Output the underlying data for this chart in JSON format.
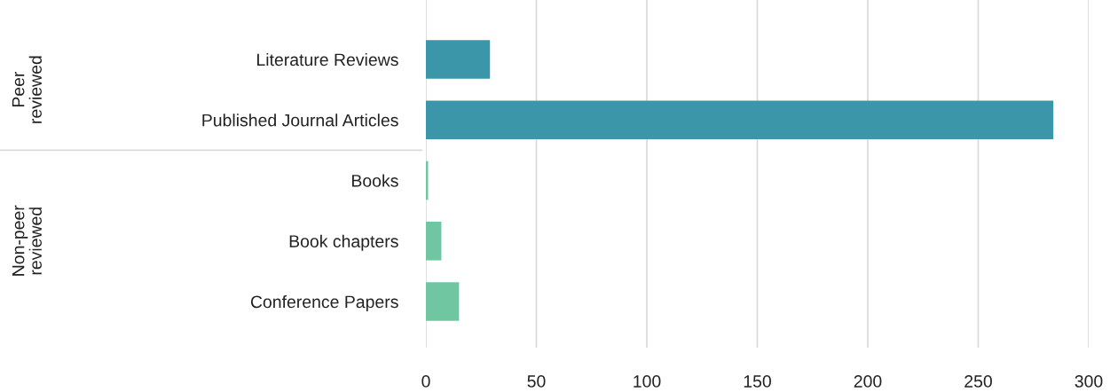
{
  "chart_data": {
    "type": "bar",
    "orientation": "horizontal",
    "categories": [
      "Literature Reviews",
      "Published Journal Articles",
      "Books",
      "Book chapters",
      "Conference Papers"
    ],
    "values": [
      29,
      284,
      1,
      7,
      15
    ],
    "colors": [
      "#3a96a8",
      "#3a96a8",
      "#6fc6a0",
      "#6fc6a0",
      "#6fc6a0"
    ],
    "annotations": [
      "Peer reviewed",
      "Non-peer reviewed"
    ],
    "xlim": [
      0,
      300
    ],
    "xticks": [
      0,
      50,
      100,
      150,
      200,
      250,
      300
    ],
    "grid": "x"
  }
}
